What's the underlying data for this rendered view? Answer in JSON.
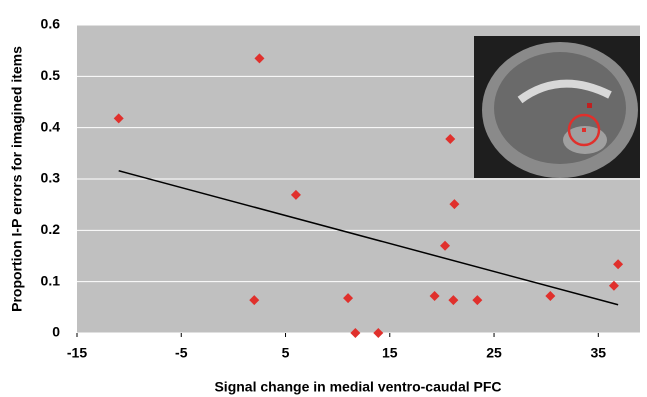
{
  "chart_data": {
    "type": "scatter",
    "xlabel": "Signal change in medial ventro-caudal PFC",
    "ylabel": "Proportion I-P errors for imagined items",
    "x": [
      -11.0,
      2.5,
      6.0,
      2.0,
      11.0,
      11.7,
      13.9,
      19.3,
      20.3,
      20.8,
      21.2,
      21.1,
      23.4,
      30.4,
      36.5,
      36.9
    ],
    "y": [
      0.418,
      0.535,
      0.269,
      0.064,
      0.068,
      0,
      0,
      0.072,
      0.17,
      0.378,
      0.251,
      0.064,
      0.064,
      0.072,
      0.092,
      0.134
    ],
    "color": "#e0302c",
    "trendline": {
      "x": [
        -11.0,
        36.9
      ],
      "y": [
        0.316,
        0.055
      ],
      "color": "#000000"
    },
    "xlim": [
      -15,
      39
    ],
    "ylim": [
      0,
      0.6
    ],
    "xticks": [
      -15,
      -5,
      5,
      15,
      25,
      35
    ],
    "yticks": [
      0,
      0.1,
      0.2,
      0.3,
      0.4,
      0.5,
      0.6
    ],
    "grid": true
  }
}
